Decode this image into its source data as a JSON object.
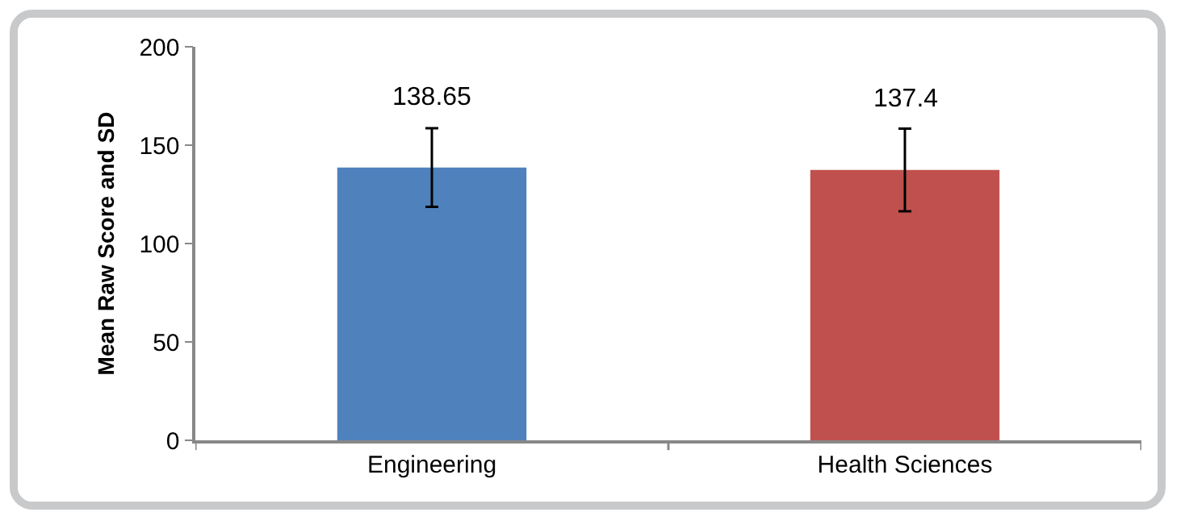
{
  "chart_data": {
    "type": "bar",
    "ylabel": "Mean Raw Score and SD",
    "categories": [
      "Engineering",
      "Health Sciences"
    ],
    "values": [
      138.65,
      137.4
    ],
    "colors": [
      "#4f81bd",
      "#c0504d"
    ],
    "errors": [
      20,
      21
    ],
    "data_labels": true,
    "ylim": [
      0,
      200
    ],
    "yticks": [
      0,
      50,
      100,
      150,
      200
    ],
    "grid": false,
    "legend": false
  }
}
